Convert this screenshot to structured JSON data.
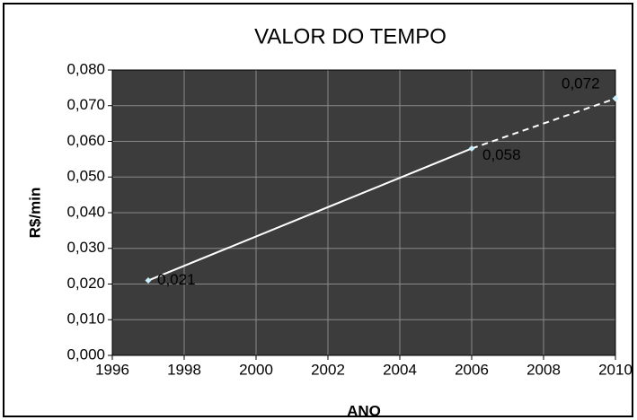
{
  "chart_data": {
    "type": "line",
    "title": "VALOR DO TEMPO",
    "x_label": "ANO",
    "y_label": "R$/min",
    "x": [
      1997,
      2006,
      2010
    ],
    "series": [
      {
        "color": "#ffffff",
        "values": [
          0.021,
          0.058,
          0.072
        ],
        "value_labels": [
          "0,021",
          "0,058",
          "0,072"
        ],
        "line_styles": [
          "solid",
          "dashed"
        ]
      }
    ],
    "xlim": [
      1996,
      2010
    ],
    "xticks": [
      1996,
      1998,
      2000,
      2002,
      2004,
      2006,
      2008,
      2010
    ],
    "ylim": [
      0,
      0.08
    ],
    "yticks": [
      {
        "value": 0,
        "label": "0,000"
      },
      {
        "value": 0.01,
        "label": "0,010"
      },
      {
        "value": 0.02,
        "label": "0,020"
      },
      {
        "value": 0.03,
        "label": "0,030"
      },
      {
        "value": 0.04,
        "label": "0,040"
      },
      {
        "value": 0.05,
        "label": "0,050"
      },
      {
        "value": 0.06,
        "label": "0,060"
      },
      {
        "value": 0.07,
        "label": "0,070"
      },
      {
        "value": 0.08,
        "label": "0,080"
      }
    ],
    "grid": true,
    "plot_background": "#3c3c3c",
    "grid_color": "#8a8a8a",
    "label_color": "#ffff00",
    "marker_color": "#c8f0ff"
  }
}
